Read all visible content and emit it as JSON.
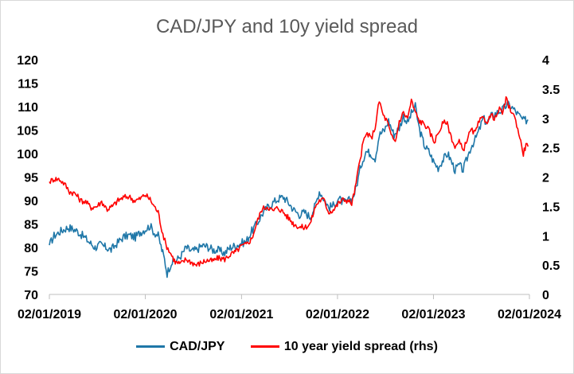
{
  "chart_data": {
    "type": "line",
    "title": "CAD/JPY and 10y yield spread",
    "x_ticks": [
      "02/01/2019",
      "02/01/2020",
      "02/01/2021",
      "02/01/2022",
      "02/01/2023",
      "02/01/2024"
    ],
    "y_left": {
      "min": 70,
      "max": 120,
      "ticks": [
        "70",
        "75",
        "80",
        "85",
        "90",
        "95",
        "100",
        "105",
        "110",
        "115",
        "120"
      ]
    },
    "y_right": {
      "min": 0,
      "max": 4,
      "ticks": [
        "0",
        "0.5",
        "1",
        "1.5",
        "2",
        "2.5",
        "3",
        "3.5",
        "4"
      ]
    },
    "series": [
      {
        "name": "CAD/JPY",
        "axis": "left",
        "color": "#1f77a8",
        "points": [
          [
            "2019-01-02",
            80.5
          ],
          [
            "2019-01-20",
            82.5
          ],
          [
            "2019-02-15",
            83.5
          ],
          [
            "2019-03-15",
            84.3
          ],
          [
            "2019-04-15",
            83.6
          ],
          [
            "2019-05-15",
            82.2
          ],
          [
            "2019-06-05",
            81.0
          ],
          [
            "2019-06-25",
            80.0
          ],
          [
            "2019-07-15",
            80.6
          ],
          [
            "2019-08-05",
            80.0
          ],
          [
            "2019-08-25",
            79.5
          ],
          [
            "2019-09-15",
            80.8
          ],
          [
            "2019-10-10",
            82.2
          ],
          [
            "2019-11-01",
            82.6
          ],
          [
            "2019-11-25",
            82.2
          ],
          [
            "2019-12-15",
            83.3
          ],
          [
            "2020-01-05",
            84.0
          ],
          [
            "2020-01-20",
            84.6
          ],
          [
            "2020-02-05",
            83.2
          ],
          [
            "2020-02-20",
            82.5
          ],
          [
            "2020-03-05",
            79.5
          ],
          [
            "2020-03-15",
            77.5
          ],
          [
            "2020-03-25",
            74.5
          ],
          [
            "2020-04-10",
            76.8
          ],
          [
            "2020-05-01",
            77.3
          ],
          [
            "2020-05-20",
            78.5
          ],
          [
            "2020-06-05",
            80.0
          ],
          [
            "2020-06-25",
            79.2
          ],
          [
            "2020-07-15",
            79.5
          ],
          [
            "2020-08-05",
            80.4
          ],
          [
            "2020-08-25",
            80.2
          ],
          [
            "2020-09-15",
            79.5
          ],
          [
            "2020-10-05",
            79.4
          ],
          [
            "2020-10-30",
            78.8
          ],
          [
            "2020-11-20",
            80.0
          ],
          [
            "2020-12-10",
            80.4
          ],
          [
            "2021-01-01",
            80.9
          ],
          [
            "2021-01-20",
            81.3
          ],
          [
            "2021-02-10",
            83.5
          ],
          [
            "2021-03-01",
            85.0
          ],
          [
            "2021-03-20",
            87.0
          ],
          [
            "2021-04-10",
            88.5
          ],
          [
            "2021-05-01",
            89.5
          ],
          [
            "2021-05-20",
            90.3
          ],
          [
            "2021-06-10",
            90.8
          ],
          [
            "2021-06-30",
            89.5
          ],
          [
            "2021-07-20",
            88.0
          ],
          [
            "2021-08-10",
            87.0
          ],
          [
            "2021-08-30",
            87.5
          ],
          [
            "2021-09-20",
            86.5
          ],
          [
            "2021-10-10",
            89.0
          ],
          [
            "2021-10-25",
            92.0
          ],
          [
            "2021-11-10",
            90.5
          ],
          [
            "2021-11-30",
            88.5
          ],
          [
            "2021-12-20",
            89.0
          ],
          [
            "2022-01-05",
            90.5
          ],
          [
            "2022-01-25",
            89.5
          ],
          [
            "2022-02-15",
            90.0
          ],
          [
            "2022-03-01",
            90.5
          ],
          [
            "2022-03-15",
            93.0
          ],
          [
            "2022-04-01",
            97.5
          ],
          [
            "2022-04-20",
            100.5
          ],
          [
            "2022-05-10",
            100.0
          ],
          [
            "2022-05-25",
            99.0
          ],
          [
            "2022-06-10",
            104.0
          ],
          [
            "2022-06-30",
            105.0
          ],
          [
            "2022-07-15",
            107.0
          ],
          [
            "2022-08-05",
            104.0
          ],
          [
            "2022-08-25",
            105.5
          ],
          [
            "2022-09-10",
            108.0
          ],
          [
            "2022-09-25",
            106.5
          ],
          [
            "2022-10-10",
            108.5
          ],
          [
            "2022-10-25",
            110.0
          ],
          [
            "2022-11-10",
            105.0
          ],
          [
            "2022-11-30",
            101.5
          ],
          [
            "2022-12-15",
            100.5
          ],
          [
            "2023-01-05",
            98.0
          ],
          [
            "2023-01-20",
            97.0
          ],
          [
            "2023-02-05",
            98.5
          ],
          [
            "2023-02-25",
            100.0
          ],
          [
            "2023-03-10",
            98.5
          ],
          [
            "2023-03-25",
            96.5
          ],
          [
            "2023-04-10",
            97.5
          ],
          [
            "2023-04-25",
            96.5
          ],
          [
            "2023-05-10",
            99.0
          ],
          [
            "2023-05-25",
            101.5
          ],
          [
            "2023-06-10",
            103.0
          ],
          [
            "2023-06-25",
            105.0
          ],
          [
            "2023-07-10",
            107.5
          ],
          [
            "2023-07-25",
            106.5
          ],
          [
            "2023-08-10",
            108.0
          ],
          [
            "2023-08-25",
            108.5
          ],
          [
            "2023-09-10",
            109.0
          ],
          [
            "2023-09-25",
            109.5
          ],
          [
            "2023-10-10",
            110.5
          ],
          [
            "2023-10-25",
            110.0
          ],
          [
            "2023-11-10",
            109.0
          ],
          [
            "2023-11-25",
            108.0
          ],
          [
            "2023-12-10",
            107.0
          ],
          [
            "2023-12-28",
            107.2
          ]
        ]
      },
      {
        "name": "10 year yield spread (rhs)",
        "axis": "right",
        "color": "#ff0000",
        "points": [
          [
            "2019-01-02",
            1.92
          ],
          [
            "2019-01-20",
            1.97
          ],
          [
            "2019-02-10",
            1.96
          ],
          [
            "2019-03-01",
            1.88
          ],
          [
            "2019-03-20",
            1.75
          ],
          [
            "2019-04-10",
            1.72
          ],
          [
            "2019-05-01",
            1.6
          ],
          [
            "2019-05-20",
            1.58
          ],
          [
            "2019-06-10",
            1.48
          ],
          [
            "2019-07-01",
            1.5
          ],
          [
            "2019-07-20",
            1.58
          ],
          [
            "2019-08-10",
            1.45
          ],
          [
            "2019-08-30",
            1.5
          ],
          [
            "2019-09-20",
            1.6
          ],
          [
            "2019-10-10",
            1.65
          ],
          [
            "2019-11-01",
            1.67
          ],
          [
            "2019-11-20",
            1.6
          ],
          [
            "2019-12-10",
            1.62
          ],
          [
            "2020-01-01",
            1.7
          ],
          [
            "2020-01-20",
            1.62
          ],
          [
            "2020-02-05",
            1.5
          ],
          [
            "2020-02-20",
            1.4
          ],
          [
            "2020-03-05",
            1.1
          ],
          [
            "2020-03-20",
            0.85
          ],
          [
            "2020-04-05",
            0.72
          ],
          [
            "2020-04-25",
            0.55
          ],
          [
            "2020-05-15",
            0.52
          ],
          [
            "2020-06-05",
            0.6
          ],
          [
            "2020-06-25",
            0.55
          ],
          [
            "2020-07-15",
            0.5
          ],
          [
            "2020-08-05",
            0.55
          ],
          [
            "2020-08-25",
            0.58
          ],
          [
            "2020-09-15",
            0.57
          ],
          [
            "2020-10-05",
            0.62
          ],
          [
            "2020-10-30",
            0.6
          ],
          [
            "2020-11-20",
            0.68
          ],
          [
            "2020-12-10",
            0.72
          ],
          [
            "2021-01-01",
            0.82
          ],
          [
            "2021-01-20",
            0.85
          ],
          [
            "2021-02-10",
            0.95
          ],
          [
            "2021-03-01",
            1.22
          ],
          [
            "2021-03-20",
            1.45
          ],
          [
            "2021-04-10",
            1.5
          ],
          [
            "2021-05-01",
            1.42
          ],
          [
            "2021-05-20",
            1.48
          ],
          [
            "2021-06-10",
            1.4
          ],
          [
            "2021-06-30",
            1.3
          ],
          [
            "2021-07-20",
            1.2
          ],
          [
            "2021-08-10",
            1.15
          ],
          [
            "2021-08-30",
            1.14
          ],
          [
            "2021-09-20",
            1.2
          ],
          [
            "2021-10-10",
            1.5
          ],
          [
            "2021-10-25",
            1.6
          ],
          [
            "2021-11-10",
            1.62
          ],
          [
            "2021-11-30",
            1.4
          ],
          [
            "2021-12-20",
            1.45
          ],
          [
            "2022-01-05",
            1.55
          ],
          [
            "2022-01-25",
            1.62
          ],
          [
            "2022-02-10",
            1.6
          ],
          [
            "2022-02-25",
            1.55
          ],
          [
            "2022-03-10",
            1.8
          ],
          [
            "2022-03-25",
            2.2
          ],
          [
            "2022-04-10",
            2.6
          ],
          [
            "2022-04-25",
            2.75
          ],
          [
            "2022-05-10",
            2.65
          ],
          [
            "2022-05-25",
            2.85
          ],
          [
            "2022-06-10",
            3.3
          ],
          [
            "2022-06-25",
            3.05
          ],
          [
            "2022-07-10",
            2.95
          ],
          [
            "2022-07-25",
            2.7
          ],
          [
            "2022-08-10",
            2.6
          ],
          [
            "2022-08-25",
            2.95
          ],
          [
            "2022-09-10",
            3.1
          ],
          [
            "2022-09-25",
            3.0
          ],
          [
            "2022-10-10",
            3.3
          ],
          [
            "2022-10-25",
            3.1
          ],
          [
            "2022-11-10",
            2.95
          ],
          [
            "2022-11-30",
            2.9
          ],
          [
            "2022-12-15",
            2.8
          ],
          [
            "2023-01-05",
            2.6
          ],
          [
            "2023-01-20",
            2.75
          ],
          [
            "2023-02-05",
            2.9
          ],
          [
            "2023-02-20",
            2.95
          ],
          [
            "2023-03-10",
            2.7
          ],
          [
            "2023-03-25",
            2.5
          ],
          [
            "2023-04-10",
            2.6
          ],
          [
            "2023-04-25",
            2.45
          ],
          [
            "2023-05-10",
            2.65
          ],
          [
            "2023-05-25",
            2.8
          ],
          [
            "2023-06-10",
            2.75
          ],
          [
            "2023-06-25",
            2.95
          ],
          [
            "2023-07-10",
            3.0
          ],
          [
            "2023-07-25",
            2.95
          ],
          [
            "2023-08-10",
            3.05
          ],
          [
            "2023-08-25",
            3.0
          ],
          [
            "2023-09-10",
            3.15
          ],
          [
            "2023-09-25",
            3.1
          ],
          [
            "2023-10-05",
            3.35
          ],
          [
            "2023-10-15",
            3.2
          ],
          [
            "2023-10-30",
            3.1
          ],
          [
            "2023-11-15",
            2.9
          ],
          [
            "2023-11-30",
            2.6
          ],
          [
            "2023-12-10",
            2.4
          ],
          [
            "2023-12-20",
            2.55
          ],
          [
            "2023-12-28",
            2.52
          ]
        ]
      }
    ],
    "legend_position": "bottom",
    "grid": false
  }
}
